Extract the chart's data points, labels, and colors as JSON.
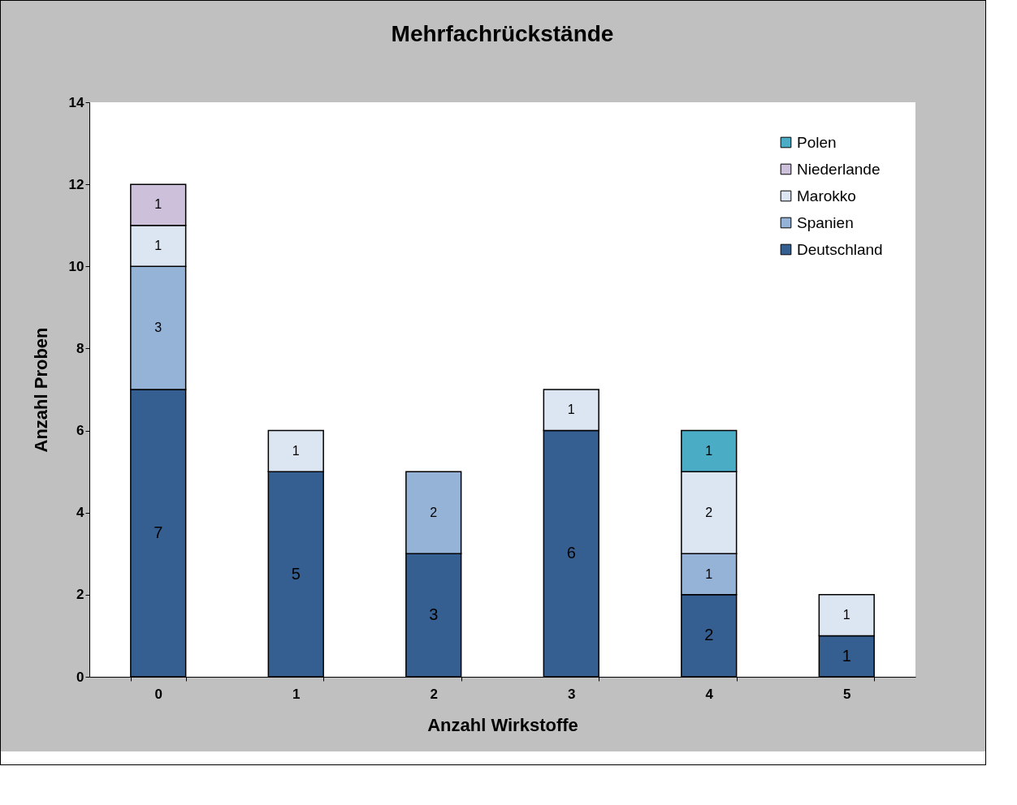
{
  "chart_data": {
    "type": "bar",
    "title": "Mehrfachrückstände",
    "xlabel": "Anzahl  Wirkstoffe",
    "ylabel": "Anzahl  Proben",
    "categories": [
      "0",
      "1",
      "2",
      "3",
      "4",
      "5"
    ],
    "stacked": true,
    "data_labels": true,
    "legend": "top right",
    "grid": false,
    "ylim": [
      0,
      14
    ],
    "yticks": [
      0,
      2,
      4,
      6,
      8,
      10,
      12,
      14
    ],
    "series": [
      {
        "name": "Deutschland",
        "color": "#365f91",
        "values": [
          7,
          5,
          3,
          6,
          2,
          1
        ]
      },
      {
        "name": "Spanien",
        "color": "#95b3d7",
        "values": [
          3,
          null,
          2,
          null,
          1,
          null
        ]
      },
      {
        "name": "Marokko",
        "color": "#dce6f2",
        "values": [
          1,
          1,
          null,
          1,
          2,
          1
        ]
      },
      {
        "name": "Niederlande",
        "color": "#ccc0da",
        "values": [
          1,
          null,
          null,
          null,
          null,
          null
        ]
      },
      {
        "name": "Polen",
        "color": "#4bacc6",
        "values": [
          null,
          null,
          null,
          null,
          1,
          null
        ]
      }
    ]
  }
}
